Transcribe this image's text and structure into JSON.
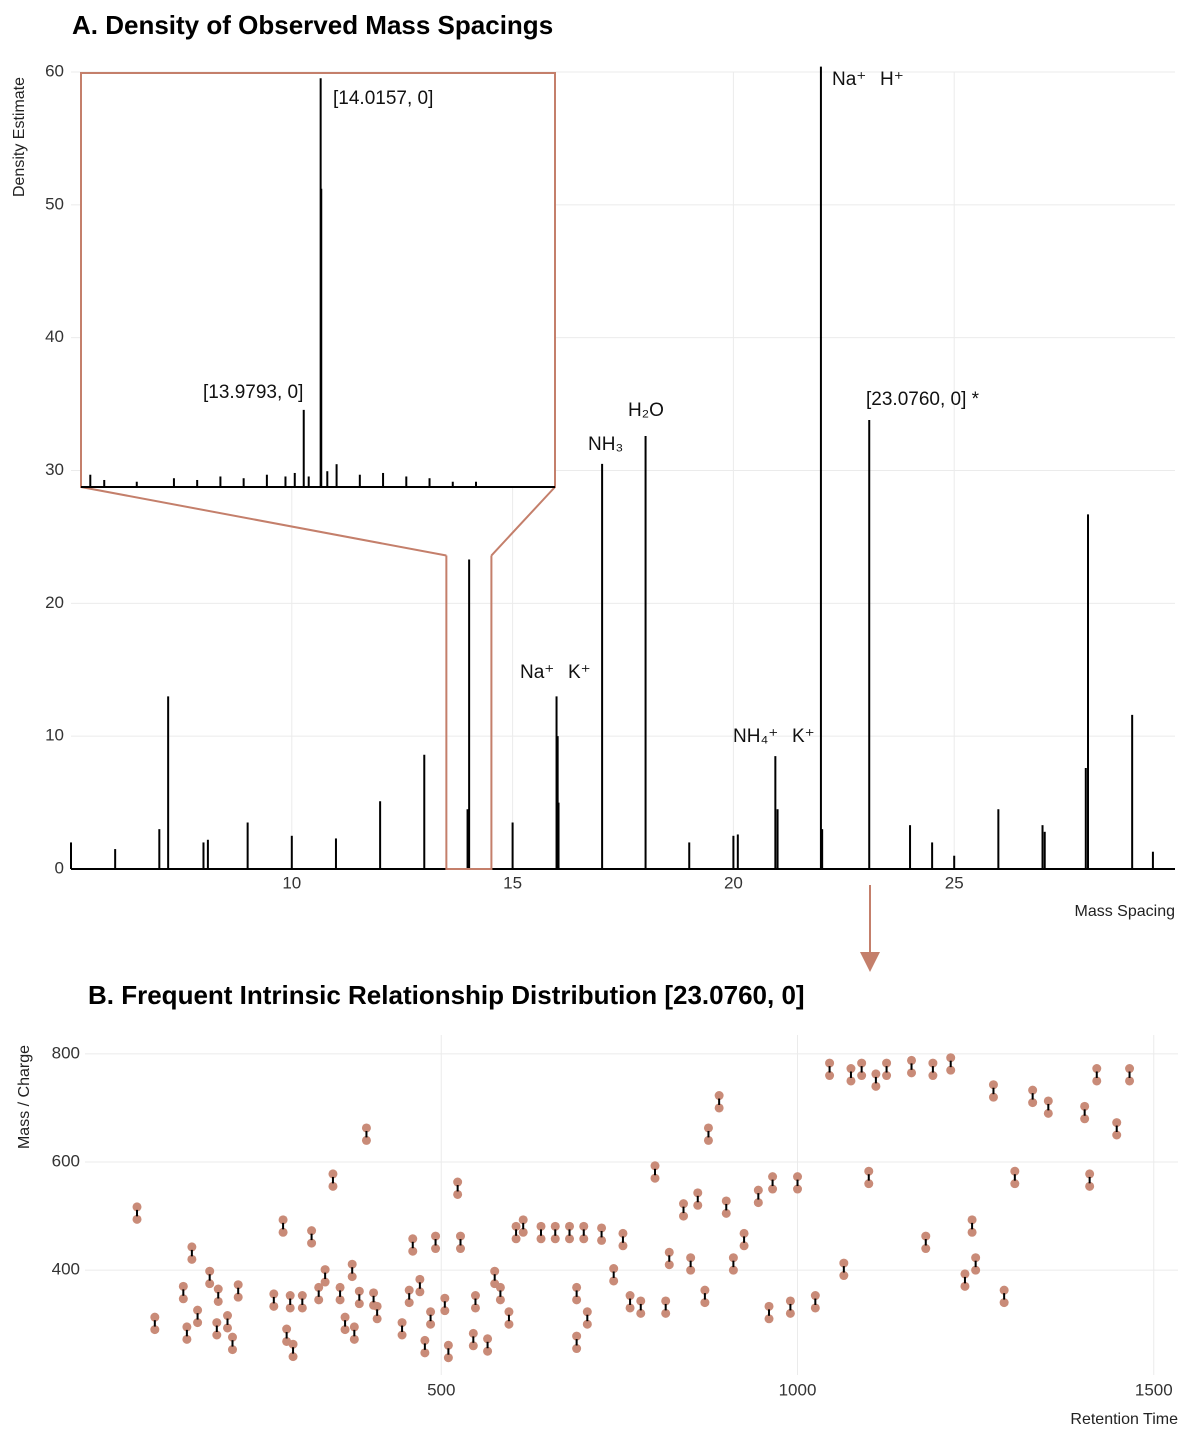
{
  "chart_data": [
    {
      "type": "spike",
      "title": "A. Density of Observed Mass Spacings",
      "x_label": "Mass Spacing",
      "y_label": "Density Estimate",
      "x": [
        5.0,
        6.0,
        7.0,
        7.2,
        8.0,
        8.1,
        9.0,
        10.0,
        11.0,
        12.0,
        13.0,
        13.98,
        14.0157,
        15.0,
        15.995,
        16.02,
        16.04,
        17.027,
        18.011,
        19.0,
        20.0,
        20.1,
        20.95,
        21.0,
        21.982,
        22.01,
        23.076,
        24.0,
        24.5,
        25.0,
        26.0,
        27.0,
        27.05,
        27.98,
        28.03,
        29.03,
        29.5
      ],
      "values": [
        2,
        1.5,
        3,
        13,
        2,
        2.2,
        3.5,
        2.5,
        2.3,
        5.1,
        8.6,
        4.5,
        23.3,
        3.5,
        13,
        10,
        5,
        30.5,
        32.6,
        2,
        2.5,
        2.6,
        8.5,
        4.5,
        60.4,
        3,
        33.8,
        3.3,
        2,
        1,
        4.5,
        3.3,
        2.8,
        7.6,
        26.7,
        11.6,
        1.3
      ],
      "color": "#000000",
      "xlim": [
        5,
        30
      ],
      "ylim": [
        0,
        60
      ],
      "xticks": [
        10,
        15,
        20,
        25
      ],
      "yticks": [
        0,
        10,
        20,
        30,
        40,
        50,
        60
      ],
      "grid": true,
      "annotations": [
        "Na⁺",
        "K⁺",
        "NH₃",
        "H₂O",
        "NH₄⁺",
        "K⁺",
        "Na⁺",
        "H⁺",
        "[23.0760, 0] *"
      ]
    },
    {
      "type": "spike",
      "x": [
        13.52,
        13.55,
        13.62,
        13.7,
        13.75,
        13.8,
        13.85,
        13.9,
        13.94,
        13.96,
        13.9793,
        13.99,
        14.0157,
        14.017,
        14.03,
        14.05,
        14.1,
        14.15,
        14.2,
        14.25,
        14.3,
        14.35
      ],
      "values": [
        0.7,
        0.4,
        0.3,
        0.5,
        0.4,
        0.6,
        0.5,
        0.7,
        0.6,
        0.8,
        4.4,
        0.6,
        23.3,
        17,
        0.9,
        1.3,
        0.7,
        0.8,
        0.6,
        0.5,
        0.3,
        0.3
      ],
      "color": "#000000",
      "xlim": [
        13.5,
        14.52
      ],
      "ylim": [
        0,
        23.6
      ],
      "zoom_color": "#c47f6b",
      "annotations": [
        "[14.0157, 0]",
        "[13.9793, 0]"
      ]
    },
    {
      "type": "scatter-pair",
      "title": "B. Frequent Intrinsic Relationship Distribution [23.0760, 0]",
      "x_label": "Retention Time",
      "y_label": "Mass / Charge",
      "x": [
        73,
        98,
        138,
        150,
        143,
        158,
        175,
        187,
        185,
        200,
        207,
        215,
        265,
        278,
        288,
        283,
        292,
        305,
        318,
        328,
        337,
        348,
        358,
        365,
        375,
        385,
        378,
        395,
        405,
        410,
        445,
        455,
        460,
        470,
        477,
        485,
        492,
        505,
        510,
        523,
        527,
        548,
        545,
        565,
        575,
        583,
        595,
        605,
        615,
        640,
        660,
        680,
        700,
        690,
        705,
        690,
        725,
        742,
        755,
        765,
        780,
        800,
        815,
        820,
        840,
        850,
        860,
        870,
        875,
        890,
        900,
        910,
        925,
        945,
        960,
        965,
        990,
        1000,
        1025,
        1045,
        1065,
        1075,
        1090,
        1100,
        1110,
        1125,
        1160,
        1180,
        1190,
        1215,
        1235,
        1245,
        1250,
        1275,
        1290,
        1305,
        1330,
        1352,
        1403,
        1410,
        1420,
        1448,
        1466
      ],
      "y_low": [
        494,
        290,
        347,
        420,
        272,
        303,
        375,
        342,
        280,
        293,
        253,
        350,
        333,
        470,
        330,
        268,
        240,
        330,
        450,
        345,
        378,
        555,
        345,
        290,
        388,
        338,
        272,
        640,
        335,
        310,
        280,
        340,
        435,
        360,
        247,
        300,
        440,
        325,
        238,
        540,
        440,
        330,
        260,
        250,
        375,
        345,
        300,
        458,
        470,
        458,
        458,
        458,
        458,
        345,
        300,
        255,
        455,
        380,
        445,
        330,
        320,
        570,
        320,
        410,
        500,
        400,
        520,
        340,
        640,
        700,
        505,
        400,
        445,
        525,
        310,
        550,
        320,
        550,
        330,
        760,
        390,
        750,
        760,
        560,
        740,
        760,
        765,
        440,
        760,
        770,
        370,
        470,
        400,
        720,
        340,
        560,
        710,
        690,
        680,
        555,
        750,
        650,
        750
      ],
      "y_high": [
        517,
        313,
        370,
        443,
        295,
        326,
        398,
        365,
        303,
        316,
        276,
        373,
        356,
        493,
        353,
        291,
        263,
        353,
        473,
        368,
        401,
        578,
        368,
        313,
        411,
        361,
        295,
        663,
        358,
        333,
        303,
        363,
        458,
        383,
        270,
        323,
        463,
        348,
        261,
        563,
        463,
        353,
        283,
        273,
        398,
        368,
        323,
        481,
        493,
        481,
        481,
        481,
        481,
        368,
        323,
        278,
        478,
        403,
        468,
        353,
        343,
        593,
        343,
        433,
        523,
        423,
        543,
        363,
        663,
        723,
        528,
        423,
        468,
        548,
        333,
        573,
        343,
        573,
        353,
        783,
        413,
        773,
        783,
        583,
        763,
        783,
        788,
        463,
        783,
        793,
        393,
        493,
        423,
        743,
        363,
        583,
        733,
        713,
        703,
        578,
        773,
        673,
        773
      ],
      "color": "#c98b78",
      "xlim": [
        0,
        1534
      ],
      "ylim": [
        206,
        835
      ],
      "xticks": [
        500,
        1000,
        1500
      ],
      "yticks": [
        400,
        600,
        800
      ],
      "grid": true
    }
  ]
}
